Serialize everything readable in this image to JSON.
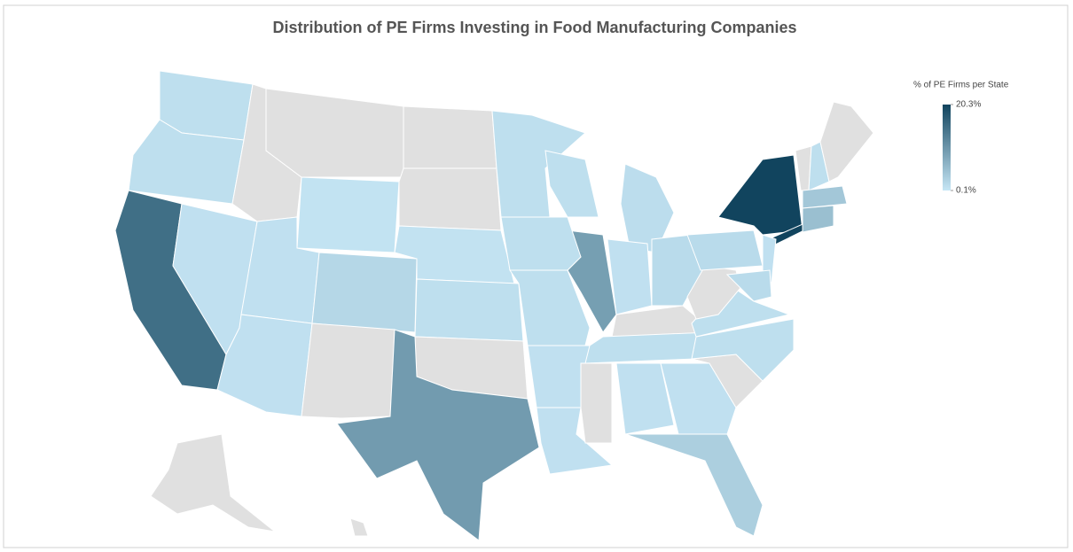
{
  "chart_data": {
    "type": "choropleth",
    "title": "Distribution of PE Firms Investing in Food Manufacturing Companies",
    "legend_title": "% of PE Firms per State",
    "values": [
      1.0,
      1.0,
      15.0,
      0.8,
      null,
      null,
      0.5,
      0.8,
      0.8,
      2.0,
      null,
      null,
      null,
      0.6,
      1.0,
      null,
      9.0,
      1.0,
      1.0,
      1.0,
      0.8,
      0.8,
      1.0,
      9.5,
      1.2,
      0.8,
      1.5,
      null,
      1.0,
      null,
      0.8,
      0.8,
      3.0,
      null,
      1.0,
      1.0,
      null,
      1.5,
      20.3,
      20.3,
      0.8,
      1.5,
      null,
      1.0,
      null,
      4.0,
      5.0,
      null,
      null
    ],
    "colors": [
      "#c6e6f5",
      "#11445e"
    ],
    "null_color": "#e0e0e0",
    "scale": [
      0.1,
      20.3
    ],
    "legend_ticks": [
      {
        "value": 20.3,
        "label": "20.3%"
      },
      {
        "value": 0.1,
        "label": "0.1%"
      }
    ],
    "legend_position": "top right"
  }
}
